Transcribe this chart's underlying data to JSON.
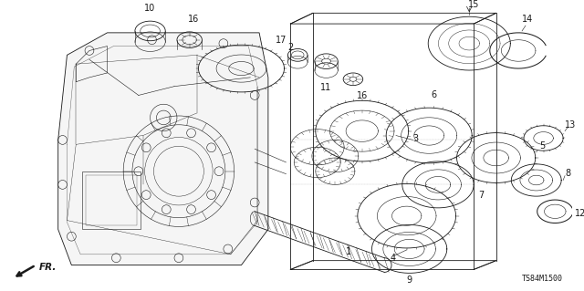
{
  "background_color": "#ffffff",
  "figure_width": 6.4,
  "figure_height": 3.19,
  "dpi": 100,
  "diagram_code": "TS84M1500",
  "dark": "#1a1a1a",
  "gray": "#888888",
  "light_gray": "#cccccc"
}
